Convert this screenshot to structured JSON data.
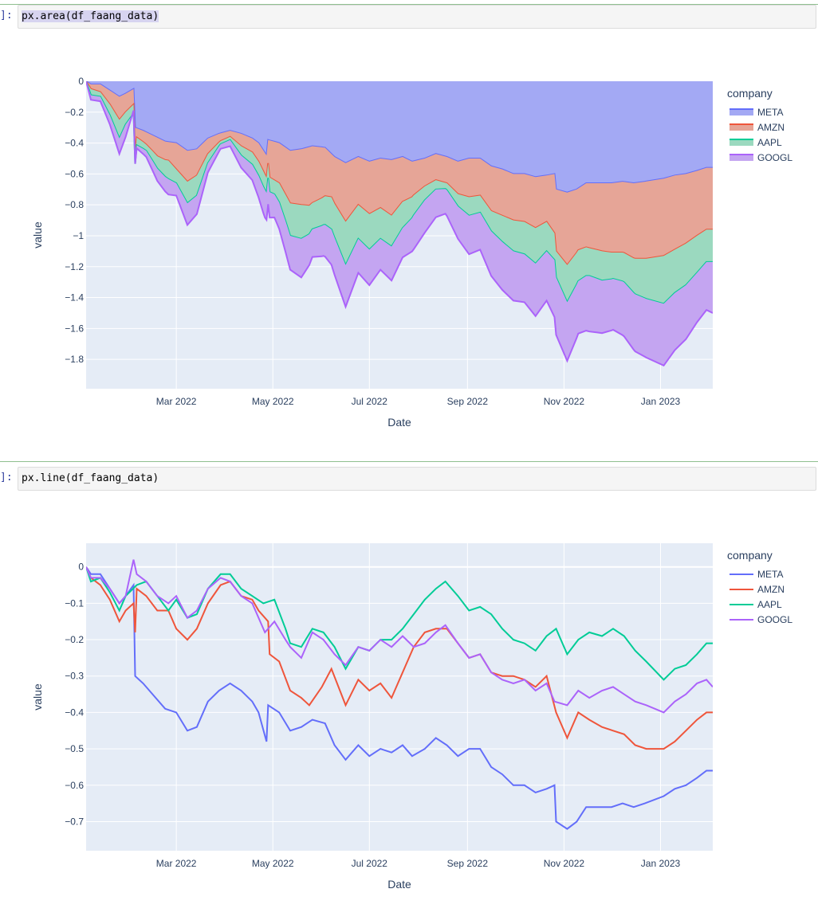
{
  "cells": [
    {
      "prompt": "]:",
      "code": "px.area(df_faang_data)",
      "selected": true
    },
    {
      "prompt": "]:",
      "code": "px.line(df_faang_data)",
      "selected": false
    }
  ],
  "chart_data": [
    {
      "type": "area",
      "xlabel": "Date",
      "ylabel": "value",
      "legend_title": "company",
      "legend_position": "top-right",
      "grid": true,
      "x_range": [
        "2022-01-03",
        "2023-02-03"
      ],
      "x_ticks": [
        {
          "date": "2022-03-01",
          "label": "Mar 2022"
        },
        {
          "date": "2022-05-01",
          "label": "May 2022"
        },
        {
          "date": "2022-07-01",
          "label": "Jul 2022"
        },
        {
          "date": "2022-09-01",
          "label": "Sep 2022"
        },
        {
          "date": "2022-11-01",
          "label": "Nov 2022"
        },
        {
          "date": "2023-01-01",
          "label": "Jan 2023"
        }
      ],
      "ylim": [
        -1.99,
        0
      ],
      "y_ticks": [
        {
          "value": 0,
          "label": "0"
        },
        {
          "value": -0.2,
          "label": "−0.2"
        },
        {
          "value": -0.4,
          "label": "−0.4"
        },
        {
          "value": -0.6,
          "label": "−0.6"
        },
        {
          "value": -0.8,
          "label": "−0.8"
        },
        {
          "value": -1,
          "label": "−1"
        },
        {
          "value": -1.2,
          "label": "−1.2"
        },
        {
          "value": -1.4,
          "label": "−1.4"
        },
        {
          "value": -1.6,
          "label": "−1.6"
        },
        {
          "value": -1.8,
          "label": "−1.8"
        }
      ],
      "stacked": true,
      "series_ref": "series"
    },
    {
      "type": "line",
      "xlabel": "Date",
      "ylabel": "value",
      "legend_title": "company",
      "legend_position": "top-right",
      "grid": true,
      "x_range": [
        "2022-01-03",
        "2023-02-03"
      ],
      "x_ticks": [
        {
          "date": "2022-03-01",
          "label": "Mar 2022"
        },
        {
          "date": "2022-05-01",
          "label": "May 2022"
        },
        {
          "date": "2022-07-01",
          "label": "Jul 2022"
        },
        {
          "date": "2022-09-01",
          "label": "Sep 2022"
        },
        {
          "date": "2022-11-01",
          "label": "Nov 2022"
        },
        {
          "date": "2023-01-01",
          "label": "Jan 2023"
        }
      ],
      "ylim": [
        -0.78,
        0.065
      ],
      "y_ticks": [
        {
          "value": 0,
          "label": "0"
        },
        {
          "value": -0.1,
          "label": "−0.1"
        },
        {
          "value": -0.2,
          "label": "−0.2"
        },
        {
          "value": -0.3,
          "label": "−0.3"
        },
        {
          "value": -0.4,
          "label": "−0.4"
        },
        {
          "value": -0.5,
          "label": "−0.5"
        },
        {
          "value": -0.6,
          "label": "−0.6"
        },
        {
          "value": -0.7,
          "label": "−0.7"
        }
      ],
      "stacked": false,
      "series_ref": "series"
    }
  ],
  "series": [
    {
      "name": "META",
      "color": "#636efa",
      "fill": "#a3a9f4",
      "points": [
        [
          "2022-01-03",
          0
        ],
        [
          "2022-01-06",
          -0.02
        ],
        [
          "2022-01-12",
          -0.02
        ],
        [
          "2022-01-18",
          -0.06
        ],
        [
          "2022-01-24",
          -0.1
        ],
        [
          "2022-01-28",
          -0.08
        ],
        [
          "2022-02-02",
          -0.05
        ],
        [
          "2022-02-03",
          -0.3
        ],
        [
          "2022-02-08",
          -0.32
        ],
        [
          "2022-02-14",
          -0.35
        ],
        [
          "2022-02-22",
          -0.39
        ],
        [
          "2022-03-01",
          -0.4
        ],
        [
          "2022-03-08",
          -0.45
        ],
        [
          "2022-03-14",
          -0.44
        ],
        [
          "2022-03-21",
          -0.37
        ],
        [
          "2022-03-28",
          -0.34
        ],
        [
          "2022-04-04",
          -0.32
        ],
        [
          "2022-04-11",
          -0.34
        ],
        [
          "2022-04-18",
          -0.37
        ],
        [
          "2022-04-22",
          -0.4
        ],
        [
          "2022-04-27",
          -0.48
        ],
        [
          "2022-04-28",
          -0.38
        ],
        [
          "2022-05-05",
          -0.4
        ],
        [
          "2022-05-12",
          -0.45
        ],
        [
          "2022-05-19",
          -0.44
        ],
        [
          "2022-05-26",
          -0.42
        ],
        [
          "2022-06-03",
          -0.43
        ],
        [
          "2022-06-09",
          -0.49
        ],
        [
          "2022-06-16",
          -0.53
        ],
        [
          "2022-06-24",
          -0.49
        ],
        [
          "2022-07-01",
          -0.52
        ],
        [
          "2022-07-08",
          -0.5
        ],
        [
          "2022-07-15",
          -0.51
        ],
        [
          "2022-07-22",
          -0.49
        ],
        [
          "2022-07-28",
          -0.52
        ],
        [
          "2022-08-05",
          -0.5
        ],
        [
          "2022-08-12",
          -0.47
        ],
        [
          "2022-08-19",
          -0.49
        ],
        [
          "2022-08-26",
          -0.52
        ],
        [
          "2022-09-02",
          -0.5
        ],
        [
          "2022-09-09",
          -0.5
        ],
        [
          "2022-09-16",
          -0.55
        ],
        [
          "2022-09-23",
          -0.57
        ],
        [
          "2022-09-30",
          -0.6
        ],
        [
          "2022-10-07",
          -0.6
        ],
        [
          "2022-10-14",
          -0.62
        ],
        [
          "2022-10-21",
          -0.61
        ],
        [
          "2022-10-26",
          -0.6
        ],
        [
          "2022-10-27",
          -0.7
        ],
        [
          "2022-11-03",
          -0.72
        ],
        [
          "2022-11-09",
          -0.7
        ],
        [
          "2022-11-15",
          -0.66
        ],
        [
          "2022-11-22",
          -0.66
        ],
        [
          "2022-12-01",
          -0.66
        ],
        [
          "2022-12-08",
          -0.65
        ],
        [
          "2022-12-15",
          -0.66
        ],
        [
          "2022-12-22",
          -0.65
        ],
        [
          "2023-01-03",
          -0.63
        ],
        [
          "2023-01-10",
          -0.61
        ],
        [
          "2023-01-17",
          -0.6
        ],
        [
          "2023-01-24",
          -0.58
        ],
        [
          "2023-01-30",
          -0.56
        ],
        [
          "2023-02-03",
          -0.56
        ]
      ]
    },
    {
      "name": "AMZN",
      "color": "#ef553b",
      "fill": "#e6a597",
      "points": [
        [
          "2022-01-03",
          0
        ],
        [
          "2022-01-06",
          -0.03
        ],
        [
          "2022-01-12",
          -0.05
        ],
        [
          "2022-01-18",
          -0.09
        ],
        [
          "2022-01-24",
          -0.15
        ],
        [
          "2022-01-28",
          -0.12
        ],
        [
          "2022-02-02",
          -0.1
        ],
        [
          "2022-02-03",
          -0.18
        ],
        [
          "2022-02-04",
          -0.06
        ],
        [
          "2022-02-10",
          -0.08
        ],
        [
          "2022-02-17",
          -0.12
        ],
        [
          "2022-02-24",
          -0.12
        ],
        [
          "2022-03-01",
          -0.17
        ],
        [
          "2022-03-08",
          -0.2
        ],
        [
          "2022-03-14",
          -0.17
        ],
        [
          "2022-03-21",
          -0.1
        ],
        [
          "2022-03-29",
          -0.05
        ],
        [
          "2022-04-04",
          -0.04
        ],
        [
          "2022-04-11",
          -0.08
        ],
        [
          "2022-04-18",
          -0.09
        ],
        [
          "2022-04-22",
          -0.12
        ],
        [
          "2022-04-28",
          -0.15
        ],
        [
          "2022-04-29",
          -0.24
        ],
        [
          "2022-05-05",
          -0.26
        ],
        [
          "2022-05-12",
          -0.34
        ],
        [
          "2022-05-19",
          -0.36
        ],
        [
          "2022-05-24",
          -0.38
        ],
        [
          "2022-06-01",
          -0.33
        ],
        [
          "2022-06-07",
          -0.28
        ],
        [
          "2022-06-16",
          -0.38
        ],
        [
          "2022-06-24",
          -0.31
        ],
        [
          "2022-07-01",
          -0.34
        ],
        [
          "2022-07-08",
          -0.32
        ],
        [
          "2022-07-15",
          -0.36
        ],
        [
          "2022-07-22",
          -0.29
        ],
        [
          "2022-07-29",
          -0.22
        ],
        [
          "2022-08-05",
          -0.18
        ],
        [
          "2022-08-12",
          -0.17
        ],
        [
          "2022-08-19",
          -0.17
        ],
        [
          "2022-08-26",
          -0.21
        ],
        [
          "2022-09-02",
          -0.25
        ],
        [
          "2022-09-09",
          -0.24
        ],
        [
          "2022-09-16",
          -0.29
        ],
        [
          "2022-09-23",
          -0.3
        ],
        [
          "2022-09-30",
          -0.3
        ],
        [
          "2022-10-07",
          -0.31
        ],
        [
          "2022-10-14",
          -0.33
        ],
        [
          "2022-10-21",
          -0.3
        ],
        [
          "2022-10-27",
          -0.4
        ],
        [
          "2022-11-03",
          -0.47
        ],
        [
          "2022-11-10",
          -0.4
        ],
        [
          "2022-11-17",
          -0.42
        ],
        [
          "2022-11-25",
          -0.44
        ],
        [
          "2022-12-02",
          -0.45
        ],
        [
          "2022-12-09",
          -0.46
        ],
        [
          "2022-12-16",
          -0.49
        ],
        [
          "2022-12-23",
          -0.5
        ],
        [
          "2023-01-03",
          -0.5
        ],
        [
          "2023-01-10",
          -0.48
        ],
        [
          "2023-01-17",
          -0.45
        ],
        [
          "2023-01-24",
          -0.42
        ],
        [
          "2023-01-30",
          -0.4
        ],
        [
          "2023-02-03",
          -0.4
        ]
      ]
    },
    {
      "name": "AAPL",
      "color": "#00cc96",
      "fill": "#9bd9bf",
      "points": [
        [
          "2022-01-03",
          0
        ],
        [
          "2022-01-06",
          -0.04
        ],
        [
          "2022-01-12",
          -0.03
        ],
        [
          "2022-01-18",
          -0.07
        ],
        [
          "2022-01-24",
          -0.12
        ],
        [
          "2022-01-28",
          -0.08
        ],
        [
          "2022-02-04",
          -0.05
        ],
        [
          "2022-02-10",
          -0.04
        ],
        [
          "2022-02-17",
          -0.08
        ],
        [
          "2022-02-24",
          -0.12
        ],
        [
          "2022-03-01",
          -0.09
        ],
        [
          "2022-03-08",
          -0.14
        ],
        [
          "2022-03-14",
          -0.13
        ],
        [
          "2022-03-21",
          -0.06
        ],
        [
          "2022-03-29",
          -0.02
        ],
        [
          "2022-04-04",
          -0.02
        ],
        [
          "2022-04-11",
          -0.06
        ],
        [
          "2022-04-18",
          -0.08
        ],
        [
          "2022-04-25",
          -0.1
        ],
        [
          "2022-05-02",
          -0.09
        ],
        [
          "2022-05-09",
          -0.17
        ],
        [
          "2022-05-12",
          -0.21
        ],
        [
          "2022-05-19",
          -0.22
        ],
        [
          "2022-05-26",
          -0.17
        ],
        [
          "2022-06-02",
          -0.18
        ],
        [
          "2022-06-09",
          -0.22
        ],
        [
          "2022-06-16",
          -0.28
        ],
        [
          "2022-06-24",
          -0.22
        ],
        [
          "2022-07-01",
          -0.23
        ],
        [
          "2022-07-08",
          -0.2
        ],
        [
          "2022-07-15",
          -0.2
        ],
        [
          "2022-07-22",
          -0.17
        ],
        [
          "2022-07-29",
          -0.13
        ],
        [
          "2022-08-05",
          -0.09
        ],
        [
          "2022-08-12",
          -0.06
        ],
        [
          "2022-08-18",
          -0.04
        ],
        [
          "2022-08-26",
          -0.08
        ],
        [
          "2022-09-02",
          -0.12
        ],
        [
          "2022-09-09",
          -0.11
        ],
        [
          "2022-09-16",
          -0.13
        ],
        [
          "2022-09-23",
          -0.17
        ],
        [
          "2022-09-30",
          -0.2
        ],
        [
          "2022-10-07",
          -0.21
        ],
        [
          "2022-10-14",
          -0.23
        ],
        [
          "2022-10-21",
          -0.19
        ],
        [
          "2022-10-27",
          -0.17
        ],
        [
          "2022-11-03",
          -0.24
        ],
        [
          "2022-11-10",
          -0.2
        ],
        [
          "2022-11-17",
          -0.18
        ],
        [
          "2022-11-25",
          -0.19
        ],
        [
          "2022-12-02",
          -0.17
        ],
        [
          "2022-12-09",
          -0.19
        ],
        [
          "2022-12-16",
          -0.23
        ],
        [
          "2022-12-23",
          -0.26
        ],
        [
          "2023-01-03",
          -0.31
        ],
        [
          "2023-01-10",
          -0.28
        ],
        [
          "2023-01-17",
          -0.27
        ],
        [
          "2023-01-24",
          -0.24
        ],
        [
          "2023-01-30",
          -0.21
        ],
        [
          "2023-02-03",
          -0.21
        ]
      ]
    },
    {
      "name": "GOOGL",
      "color": "#ab63fa",
      "fill": "#c4a5f1",
      "points": [
        [
          "2022-01-03",
          0
        ],
        [
          "2022-01-06",
          -0.03
        ],
        [
          "2022-01-12",
          -0.03
        ],
        [
          "2022-01-18",
          -0.06
        ],
        [
          "2022-01-24",
          -0.1
        ],
        [
          "2022-01-28",
          -0.08
        ],
        [
          "2022-02-02",
          0.02
        ],
        [
          "2022-02-04",
          -0.02
        ],
        [
          "2022-02-10",
          -0.04
        ],
        [
          "2022-02-17",
          -0.08
        ],
        [
          "2022-02-24",
          -0.1
        ],
        [
          "2022-03-01",
          -0.08
        ],
        [
          "2022-03-08",
          -0.14
        ],
        [
          "2022-03-14",
          -0.12
        ],
        [
          "2022-03-21",
          -0.06
        ],
        [
          "2022-03-29",
          -0.03
        ],
        [
          "2022-04-04",
          -0.04
        ],
        [
          "2022-04-11",
          -0.08
        ],
        [
          "2022-04-18",
          -0.1
        ],
        [
          "2022-04-26",
          -0.18
        ],
        [
          "2022-05-02",
          -0.15
        ],
        [
          "2022-05-09",
          -0.2
        ],
        [
          "2022-05-12",
          -0.22
        ],
        [
          "2022-05-19",
          -0.25
        ],
        [
          "2022-05-26",
          -0.18
        ],
        [
          "2022-06-02",
          -0.2
        ],
        [
          "2022-06-09",
          -0.24
        ],
        [
          "2022-06-16",
          -0.27
        ],
        [
          "2022-06-24",
          -0.22
        ],
        [
          "2022-07-01",
          -0.23
        ],
        [
          "2022-07-08",
          -0.2
        ],
        [
          "2022-07-15",
          -0.22
        ],
        [
          "2022-07-22",
          -0.19
        ],
        [
          "2022-07-29",
          -0.22
        ],
        [
          "2022-08-05",
          -0.21
        ],
        [
          "2022-08-12",
          -0.18
        ],
        [
          "2022-08-18",
          -0.16
        ],
        [
          "2022-08-26",
          -0.21
        ],
        [
          "2022-09-02",
          -0.25
        ],
        [
          "2022-09-09",
          -0.24
        ],
        [
          "2022-09-16",
          -0.29
        ],
        [
          "2022-09-23",
          -0.31
        ],
        [
          "2022-09-30",
          -0.32
        ],
        [
          "2022-10-07",
          -0.31
        ],
        [
          "2022-10-14",
          -0.34
        ],
        [
          "2022-10-21",
          -0.32
        ],
        [
          "2022-10-26",
          -0.37
        ],
        [
          "2022-11-03",
          -0.38
        ],
        [
          "2022-11-10",
          -0.34
        ],
        [
          "2022-11-17",
          -0.36
        ],
        [
          "2022-11-25",
          -0.34
        ],
        [
          "2022-12-02",
          -0.33
        ],
        [
          "2022-12-09",
          -0.35
        ],
        [
          "2022-12-16",
          -0.37
        ],
        [
          "2022-12-23",
          -0.38
        ],
        [
          "2023-01-03",
          -0.4
        ],
        [
          "2023-01-10",
          -0.37
        ],
        [
          "2023-01-17",
          -0.35
        ],
        [
          "2023-01-24",
          -0.32
        ],
        [
          "2023-01-30",
          -0.31
        ],
        [
          "2023-02-03",
          -0.33
        ]
      ]
    }
  ]
}
